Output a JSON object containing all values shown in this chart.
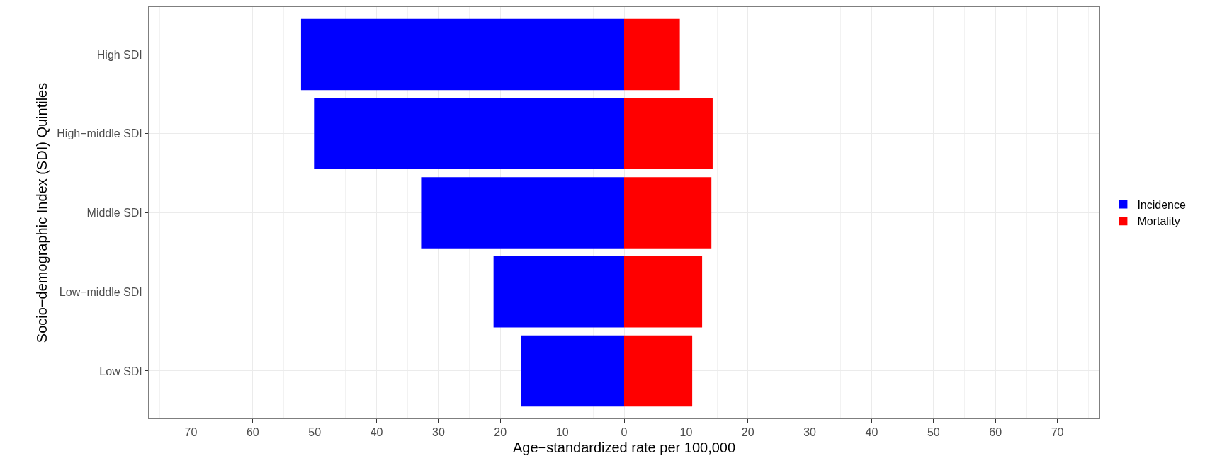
{
  "chart_data": {
    "type": "bar",
    "orientation": "horizontal",
    "stacked": true,
    "xlabel": "Age−standardized rate per 100,000",
    "ylabel": "Socio−demographic Index (SDI) Quintiles",
    "categories": [
      "High SDI",
      "High−middle SDI",
      "Middle SDI",
      "Low−middle SDI",
      "Low SDI"
    ],
    "series": [
      {
        "name": "Incidence",
        "color": "#0000ff",
        "values": [
          -52.2,
          -50.1,
          -32.8,
          -21.1,
          -16.6
        ]
      },
      {
        "name": "Mortality",
        "color": "#ff0000",
        "values": [
          9.0,
          14.3,
          14.1,
          12.6,
          11.0
        ]
      }
    ],
    "xlim": [
      -76.8,
      76.8
    ],
    "xticks": [
      {
        "value": -70,
        "label": "70"
      },
      {
        "value": -60,
        "label": "60"
      },
      {
        "value": -50,
        "label": "50"
      },
      {
        "value": -40,
        "label": "40"
      },
      {
        "value": -30,
        "label": "30"
      },
      {
        "value": -20,
        "label": "20"
      },
      {
        "value": -10,
        "label": "10"
      },
      0,
      10,
      20,
      30,
      40,
      50,
      60,
      70
    ],
    "grid": true,
    "legend": "right"
  }
}
